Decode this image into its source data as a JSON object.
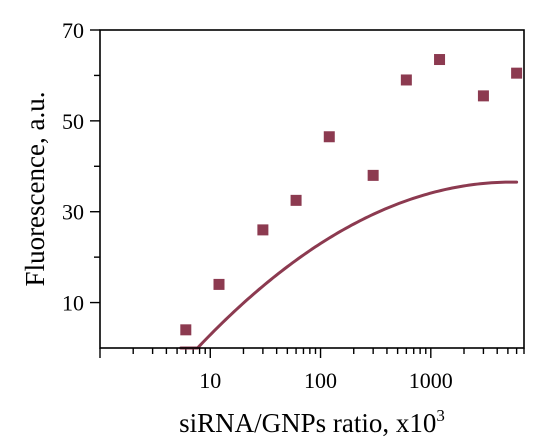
{
  "chart_data": {
    "type": "scatter",
    "title": "",
    "xlabel": "siRNA/GNPs ratio, x10",
    "xlabel_sup": "3",
    "ylabel": "Fluorescence, a.u.",
    "xscale": "log",
    "xlim": [
      1,
      7000
    ],
    "ylim": [
      0,
      70
    ],
    "x_ticks": [
      {
        "value": 10,
        "label": "10"
      },
      {
        "value": 100,
        "label": "100"
      },
      {
        "value": 1000,
        "label": "1000"
      }
    ],
    "y_ticks": [
      {
        "value": 10,
        "label": "10"
      },
      {
        "value": 30,
        "label": "30"
      },
      {
        "value": 50,
        "label": "50"
      },
      {
        "value": 70,
        "label": "70"
      }
    ],
    "y_minor_ticks": [
      20,
      40,
      60
    ],
    "grid": false,
    "legend": "none",
    "color": "#8c3a50",
    "series": [
      {
        "x": [
          6,
          12,
          30,
          60,
          120,
          300,
          600,
          1200,
          3000,
          6000
        ],
        "y": [
          4.0,
          14.0,
          26.0,
          32.5,
          46.5,
          38.0,
          59.0,
          63.5,
          55.5,
          60.5
        ]
      }
    ],
    "fit_curve": {
      "type": "quadratic-in-log10x",
      "coefficients": [
        -26.2,
        33.6,
        -4.5
      ],
      "x_range": [
        5.4,
        6000
      ]
    }
  }
}
